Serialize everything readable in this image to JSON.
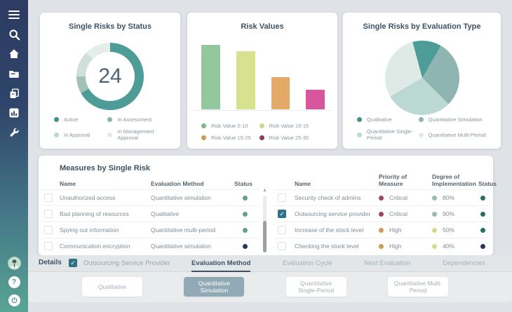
{
  "cards": {
    "status": {
      "title": "Single Risks by Status",
      "center_value": "24",
      "legend": [
        {
          "label": "Active",
          "color": "#3f9490"
        },
        {
          "label": "In Assessment",
          "color": "#8fb3a6"
        },
        {
          "label": "In Approval",
          "color": "#bdd8cc"
        },
        {
          "label": "In Management Approval",
          "color": "#e2ece7"
        }
      ]
    },
    "risk_values": {
      "title": "Risk Values",
      "legend": [
        {
          "label": "Risk Value 0-10",
          "color": "#7db98a"
        },
        {
          "label": "Risk Value 10-15",
          "color": "#ccd989"
        },
        {
          "label": "Risk Value 15-25",
          "color": "#cf9a52"
        },
        {
          "label": "Risk Value 25-30",
          "color": "#8e3b52"
        }
      ]
    },
    "evaluation_type": {
      "title": "Single Risks by Evaluation Type",
      "legend": [
        {
          "label": "Qualitative",
          "color": "#3f948e"
        },
        {
          "label": "Quantitative Simulation",
          "color": "#8fb3ae"
        },
        {
          "label": "Quantitative Single-Period",
          "color": "#bdd8d1"
        },
        {
          "label": "Quantitative Multi-Period",
          "color": "#e0ebe7"
        }
      ]
    }
  },
  "chart_data": [
    {
      "type": "pie",
      "variant": "donut",
      "title": "Single Risks by Status",
      "center_label": "24",
      "categories": [
        "Active",
        "In Assessment",
        "In Approval",
        "In Management Approval"
      ],
      "values": [
        16,
        2,
        3,
        3
      ],
      "colors": [
        "#4d9c98",
        "#a3c2b7",
        "#cfe0d8",
        "#e4ede9"
      ],
      "legend_position": "bottom"
    },
    {
      "type": "bar",
      "title": "Risk Values",
      "categories": [
        "Risk Value 0-10",
        "Risk Value 10-15",
        "Risk Value 15-25",
        "Risk Value 25-30"
      ],
      "values": [
        10,
        9,
        5,
        3
      ],
      "colors": [
        "#93c89f",
        "#d7e190",
        "#e5a967",
        "#d8569d"
      ],
      "ylim": [
        0,
        10
      ],
      "grid": false,
      "legend_position": "bottom"
    },
    {
      "type": "pie",
      "title": "Single Risks by Evaluation Type",
      "categories": [
        "Qualitative",
        "Quantitative Simulation",
        "Quantitative Single-Period",
        "Quantitative Multi-Period"
      ],
      "values": [
        3,
        7,
        7,
        7
      ],
      "colors": [
        "#4d9c98",
        "#8fb5b2",
        "#bcd8d2",
        "#dfeae6"
      ],
      "legend_position": "bottom"
    }
  ],
  "measures": {
    "title": "Measures by Single Risk",
    "left_table": {
      "headers": [
        "Name",
        "Evaluation Method",
        "Status"
      ],
      "rows": [
        {
          "checked": false,
          "name": "Unauthorized access",
          "method": "Quantitative simulation",
          "status_color": "#5ea487"
        },
        {
          "checked": false,
          "name": "Bad planning of resources",
          "method": "Qualitative",
          "status_color": "#5ea487"
        },
        {
          "checked": false,
          "name": "Spying out information",
          "method": "Quantitative multi-period",
          "status_color": "#5ea487"
        },
        {
          "checked": false,
          "name": "Communication encryption",
          "method": "Quantitative simulation",
          "status_color": "#27355e"
        }
      ]
    },
    "right_table": {
      "headers": [
        "Name",
        "Priority of Measure",
        "Degree of Implementation",
        "Status"
      ],
      "rows": [
        {
          "checked": false,
          "name": "Security check of admins",
          "priority": "Critical",
          "priority_color": "#9e4660",
          "degree": "80%",
          "degree_color": "#9cbcaa",
          "status_color": "#2a6e5e"
        },
        {
          "checked": true,
          "name": "Outsourcing service provider",
          "priority": "Critical",
          "priority_color": "#9e4660",
          "degree": "90%",
          "degree_color": "#9cbcaa",
          "status_color": "#2a6e5e"
        },
        {
          "checked": false,
          "name": "Increase of the stock level",
          "priority": "High",
          "priority_color": "#cf9a52",
          "degree": "50%",
          "degree_color": "#d5d98e",
          "status_color": "#2a6e5e"
        },
        {
          "checked": false,
          "name": "Checking the stock level",
          "priority": "High",
          "priority_color": "#cf9a52",
          "degree": "40%",
          "degree_color": "#d5d98e",
          "status_color": "#27355e"
        }
      ]
    }
  },
  "details": {
    "label": "Details",
    "checkbox_label": "Outsourcing Service Provider",
    "checkbox_checked": true,
    "tabs": [
      {
        "label": "Evaluation Method",
        "active": true
      },
      {
        "label": "Evaluation Cycle",
        "active": false
      },
      {
        "label": "Next Evaluation",
        "active": false
      },
      {
        "label": "Dependencies",
        "active": false
      }
    ],
    "buttons": [
      {
        "label": "Qualitative",
        "selected": false
      },
      {
        "label": "Quantitative Simulation",
        "selected": true
      },
      {
        "label": "Quantitative Single-Period",
        "selected": false
      },
      {
        "label": "Quantitative Multi-Period",
        "selected": false
      }
    ],
    "accent_color": "#2f7285",
    "selected_button_color": "#92aab6"
  },
  "sidebar": {
    "icons": [
      {
        "name": "menu-icon"
      },
      {
        "name": "search-icon"
      },
      {
        "name": "home-icon"
      },
      {
        "name": "folder-icon"
      },
      {
        "name": "copy-icon"
      },
      {
        "name": "bar-chart-icon"
      },
      {
        "name": "wrench-icon"
      }
    ],
    "bottom": {
      "help_glyph": "?"
    }
  }
}
